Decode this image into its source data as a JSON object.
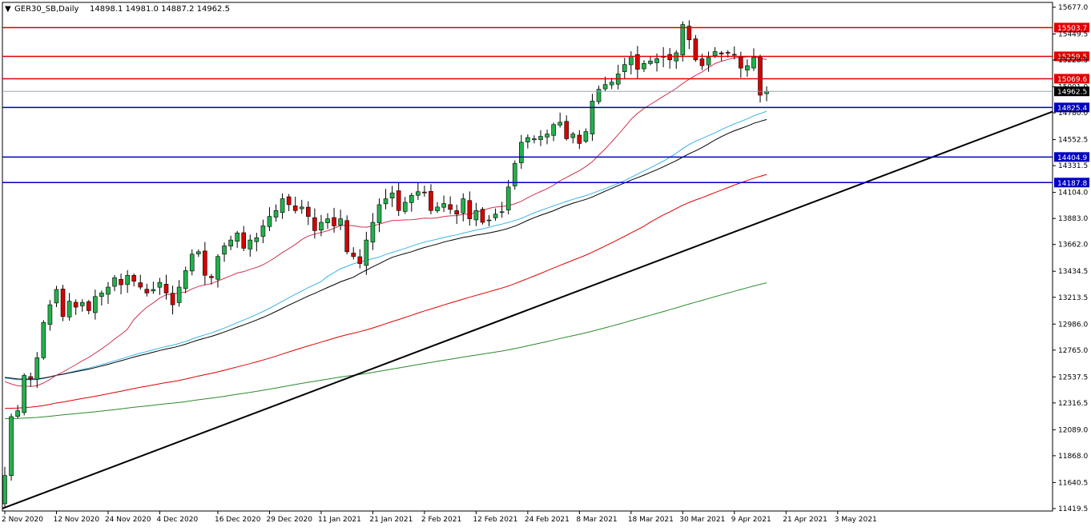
{
  "header": {
    "symbol": "GER30_SB,Daily",
    "ohlc": "14898.1 14981.0 14887.2 14962.5"
  },
  "colors": {
    "bull": "#22b14c",
    "bear": "#d80000",
    "wick": "#000000",
    "sma_fast": "#d0334f",
    "sma_mid_blue": "#3ab4e6",
    "sma_mid_black": "#000000",
    "sma_slow_red": "#e00000",
    "sma_200": "#2d8a2d",
    "res_line": "#e00000",
    "sup_line": "#0000c0",
    "trend_line": "#000000",
    "price_line": "#8899aa"
  },
  "chart_data": {
    "type": "candlestick",
    "symbol": "GER30_SB",
    "timeframe": "Daily",
    "y_range": [
      11419,
      15677
    ],
    "y_ticks": [
      "15677.0",
      "15449.5",
      "15228.5",
      "15001.0",
      "14780.0",
      "14552.5",
      "14331.5",
      "14104.0",
      "13883.0",
      "13662.0",
      "13434.5",
      "13213.5",
      "12986.0",
      "12765.0",
      "12537.5",
      "12316.5",
      "12089.0",
      "11868.0",
      "11640.5",
      "11419.5"
    ],
    "x_labels": [
      "2 Nov 2020",
      "12 Nov 2020",
      "24 Nov 2020",
      "4 Dec 2020",
      "16 Dec 2020",
      "29 Dec 2020",
      "11 Jan 2021",
      "21 Jan 2021",
      "2 Feb 2021",
      "12 Feb 2021",
      "24 Feb 2021",
      "8 Mar 2021",
      "18 Mar 2021",
      "30 Mar 2021",
      "9 Apr 2021",
      "21 Apr 2021",
      "3 May 2021"
    ],
    "closes": [
      11700,
      12200,
      12250,
      12550,
      12520,
      12700,
      13000,
      13150,
      13280,
      13050,
      13180,
      13130,
      13170,
      13100,
      13220,
      13250,
      13300,
      13380,
      13320,
      13400,
      13350,
      13300,
      13250,
      13280,
      13340,
      13250,
      13150,
      13300,
      13440,
      13580,
      13600,
      13400,
      13380,
      13560,
      13650,
      13700,
      13760,
      13630,
      13700,
      13720,
      13820,
      13900,
      13950,
      14050,
      14000,
      13950,
      13980,
      13900,
      13780,
      13850,
      13880,
      13820,
      13880,
      13600,
      13560,
      13500,
      13700,
      13850,
      14000,
      14050,
      14100,
      13950,
      14020,
      14080,
      14110,
      14100,
      13950,
      13980,
      14010,
      13960,
      13920,
      14050,
      13880,
      13950,
      13850,
      13870,
      13920,
      13940,
      14150,
      14350,
      14530,
      14570,
      14560,
      14580,
      14600,
      14680,
      14700,
      14560,
      14600,
      14520,
      14620,
      14880,
      14980,
      15020,
      15040,
      15110,
      15190,
      15260,
      15150,
      15200,
      15220,
      15240,
      15260,
      15230,
      15290,
      15530,
      15400,
      15230,
      15180,
      15250,
      15300,
      15280,
      15290,
      15270,
      15160,
      15180,
      15250,
      14930,
      14962.5
    ],
    "horizontal_levels": [
      {
        "label": "15503.7",
        "kind": "resistance"
      },
      {
        "label": "15259.5",
        "kind": "resistance"
      },
      {
        "label": "15069.6",
        "kind": "resistance"
      },
      {
        "label": "14962.5",
        "kind": "current"
      },
      {
        "label": "14825.4",
        "kind": "support"
      },
      {
        "label": "14404.9",
        "kind": "support"
      },
      {
        "label": "14187.8",
        "kind": "support"
      }
    ],
    "trendline": {
      "from": {
        "date": "2 Nov 2020",
        "price": 11420
      },
      "to": {
        "date": "right edge",
        "price": 14790
      }
    },
    "moving_averages": [
      "fast",
      "mid-blue",
      "mid-black",
      "slow-red",
      "200-green"
    ]
  }
}
